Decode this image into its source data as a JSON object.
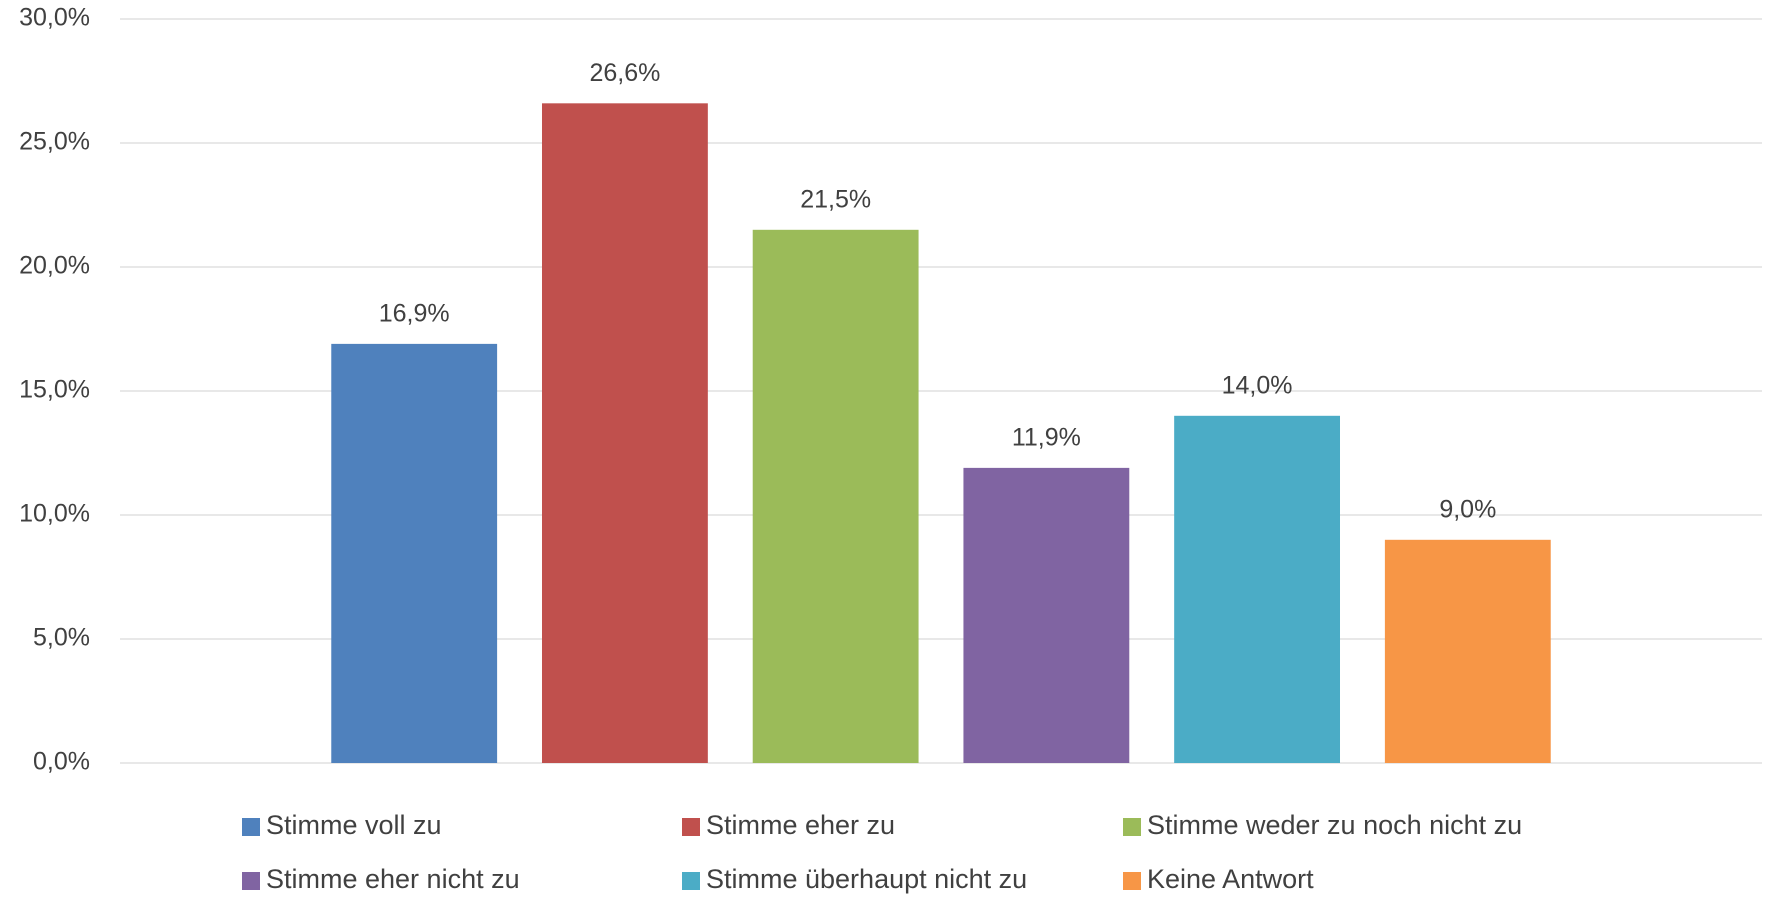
{
  "chart_data": {
    "type": "bar",
    "series": [
      {
        "name": "Stimme voll zu",
        "color": "#4f81bd",
        "values": [
          16.9
        ],
        "value_labels": [
          "16,9%"
        ]
      },
      {
        "name": "Stimme eher zu",
        "color": "#c0504d",
        "values": [
          26.6
        ],
        "value_labels": [
          "26,6%"
        ]
      },
      {
        "name": "Stimme weder zu noch nicht zu",
        "color": "#9bbb59",
        "values": [
          21.5
        ],
        "value_labels": [
          "21,5%"
        ]
      },
      {
        "name": "Stimme eher nicht zu",
        "color": "#8064a2",
        "values": [
          11.9
        ],
        "value_labels": [
          "11,9%"
        ]
      },
      {
        "name": "Stimme überhaupt nicht zu",
        "color": "#4bacc6",
        "values": [
          14.0
        ],
        "value_labels": [
          "14,0%"
        ]
      },
      {
        "name": "Keine Antwort",
        "color": "#f79646",
        "values": [
          9.0
        ],
        "value_labels": [
          "9,0%"
        ]
      }
    ],
    "ylim": [
      0,
      30
    ],
    "yticks": [
      {
        "value": 0,
        "label": "0,0%"
      },
      {
        "value": 5,
        "label": "5,0%"
      },
      {
        "value": 10,
        "label": "10,0%"
      },
      {
        "value": 15,
        "label": "15,0%"
      },
      {
        "value": 20,
        "label": "20,0%"
      },
      {
        "value": 25,
        "label": "25,0%"
      },
      {
        "value": 30,
        "label": "30,0%"
      }
    ],
    "grid": true,
    "legend": "bottom"
  }
}
